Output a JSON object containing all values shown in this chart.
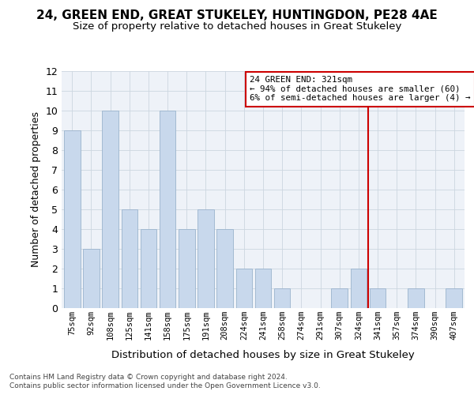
{
  "title": "24, GREEN END, GREAT STUKELEY, HUNTINGDON, PE28 4AE",
  "subtitle": "Size of property relative to detached houses in Great Stukeley",
  "xlabel": "Distribution of detached houses by size in Great Stukeley",
  "ylabel": "Number of detached properties",
  "categories": [
    "75sqm",
    "92sqm",
    "108sqm",
    "125sqm",
    "141sqm",
    "158sqm",
    "175sqm",
    "191sqm",
    "208sqm",
    "224sqm",
    "241sqm",
    "258sqm",
    "274sqm",
    "291sqm",
    "307sqm",
    "324sqm",
    "341sqm",
    "357sqm",
    "374sqm",
    "390sqm",
    "407sqm"
  ],
  "values": [
    9,
    3,
    10,
    5,
    4,
    10,
    4,
    5,
    4,
    2,
    2,
    1,
    0,
    0,
    1,
    2,
    1,
    0,
    1,
    0,
    1
  ],
  "bar_color": "#c8d8ec",
  "bar_edge_color": "#9ab4cc",
  "vline_color": "#cc0000",
  "vline_x_index": 15.5,
  "annotation_line1": "24 GREEN END: 321sqm",
  "annotation_line2": "← 94% of detached houses are smaller (60)",
  "annotation_line3": "6% of semi-detached houses are larger (4) →",
  "ylim_max": 12,
  "footer1": "Contains HM Land Registry data © Crown copyright and database right 2024.",
  "footer2": "Contains public sector information licensed under the Open Government Licence v3.0.",
  "bg_color": "#eef2f8",
  "grid_color": "#ccd6e0",
  "title_fontsize": 11,
  "subtitle_fontsize": 9.5,
  "xlabel_fontsize": 9.5,
  "ylabel_fontsize": 9
}
